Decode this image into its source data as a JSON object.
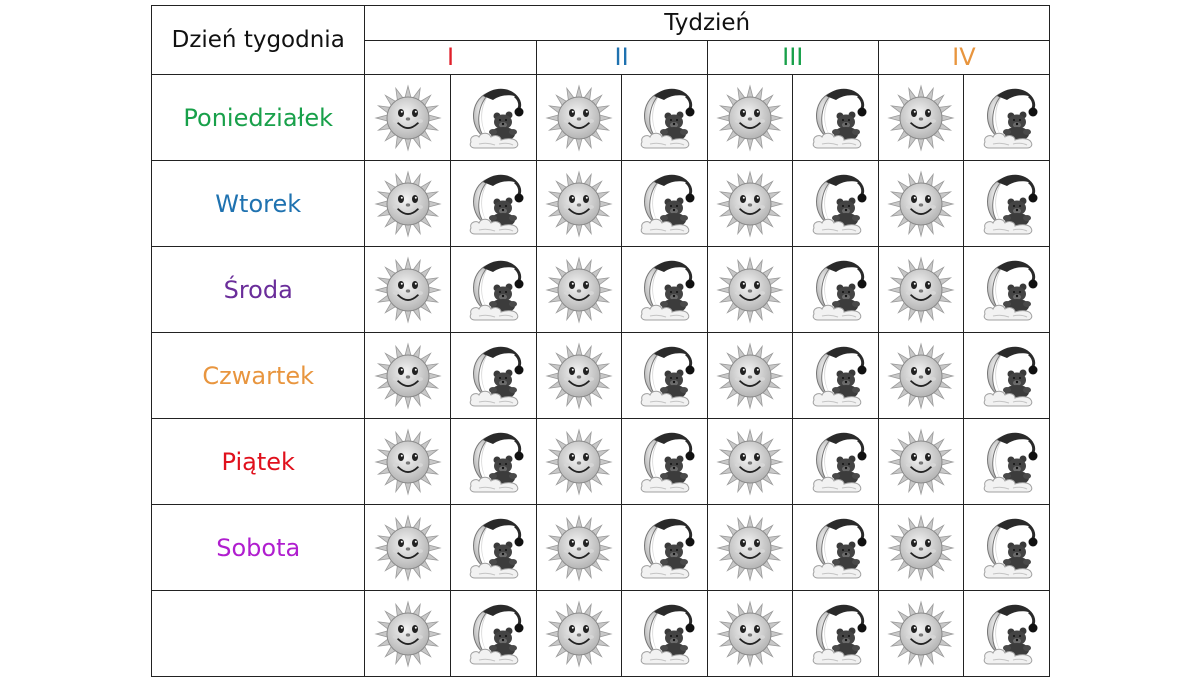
{
  "header": {
    "day_label": "Dzień tygodnia",
    "week_label": "Tydzień"
  },
  "weeks": [
    {
      "label": "I",
      "color": "#e0202a"
    },
    {
      "label": "II",
      "color": "#1f72b0"
    },
    {
      "label": "III",
      "color": "#18a04a"
    },
    {
      "label": "IV",
      "color": "#e8953e"
    }
  ],
  "days": [
    {
      "label": "Poniedziałek",
      "color": "#18a04a"
    },
    {
      "label": "Wtorek",
      "color": "#1f72b0"
    },
    {
      "label": "Środa",
      "color": "#6a2d9a"
    },
    {
      "label": "Czwartek",
      "color": "#e8953e"
    },
    {
      "label": "Piątek",
      "color": "#e0101c"
    },
    {
      "label": "Sobota",
      "color": "#b01ecf"
    },
    {
      "label": "",
      "color": "#333333"
    }
  ],
  "icons": {
    "day_icon": "sun-icon",
    "night_icon": "moon-teddy-icon"
  }
}
